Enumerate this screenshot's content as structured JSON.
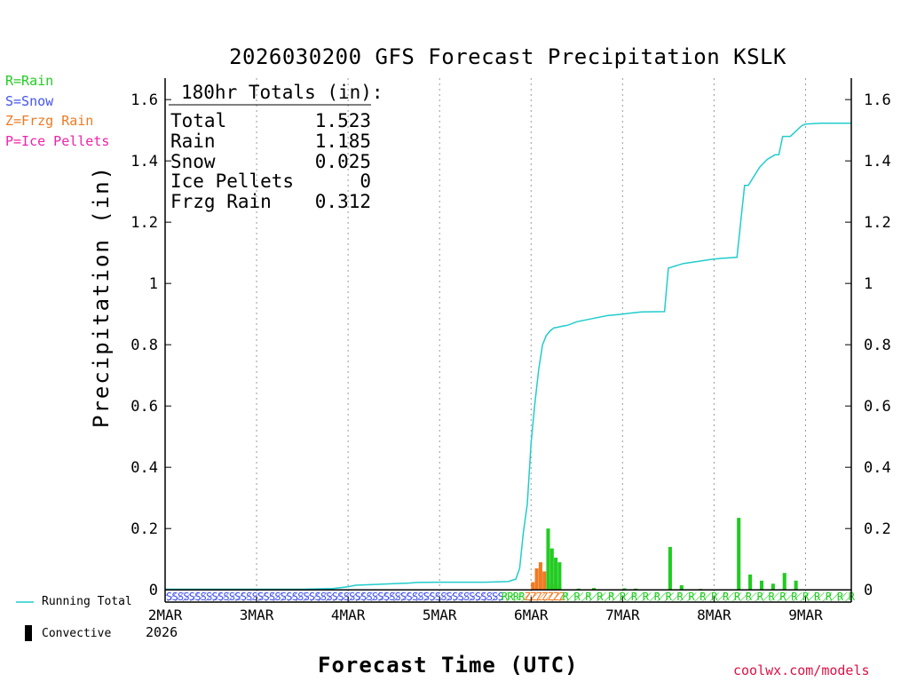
{
  "chart_data": {
    "type": "bar",
    "title": "2026030200 GFS Forecast Precipitation KSLK",
    "xlabel": "Forecast Time (UTC)",
    "ylabel": "Precipitation (in)",
    "ylim": [
      -0.04,
      1.67
    ],
    "yticks": [
      0,
      0.2,
      0.4,
      0.6,
      0.8,
      1,
      1.2,
      1.4,
      1.6
    ],
    "ytick_labels": [
      "0",
      "0.2",
      "0.4",
      "0.6",
      "0.8",
      "1",
      "1.2",
      "1.4",
      "1.6"
    ],
    "xlim_hours": [
      0,
      180
    ],
    "x_ticks": [
      {
        "hour": 0,
        "label": "2MAR"
      },
      {
        "hour": 24,
        "label": "3MAR"
      },
      {
        "hour": 48,
        "label": "4MAR"
      },
      {
        "hour": 72,
        "label": "5MAR"
      },
      {
        "hour": 96,
        "label": "6MAR"
      },
      {
        "hour": 120,
        "label": "7MAR"
      },
      {
        "hour": 144,
        "label": "8MAR"
      },
      {
        "hour": 168,
        "label": "9MAR"
      }
    ],
    "year_label": "2026",
    "grid": "vertical dotted at day boundaries",
    "legend": [
      {
        "text": "R=Rain",
        "color": "#22cc22"
      },
      {
        "text": "S=Snow",
        "color": "#4455ee"
      },
      {
        "text": "Z=Frzg Rain",
        "color": "#ee7a22"
      },
      {
        "text": "P=Ice Pellets",
        "color": "#ee22aa"
      }
    ],
    "bottom_legend": {
      "running_total": "Running Total",
      "convective": "Convective"
    },
    "totals": {
      "header": "180hr Totals (in):",
      "rows": [
        {
          "label": "Total",
          "value": "1.523"
        },
        {
          "label": "Rain",
          "value": "1.185"
        },
        {
          "label": "Snow",
          "value": "0.025"
        },
        {
          "label": "Ice Pellets",
          "value": "0"
        },
        {
          "label": "Frzg Rain",
          "value": "0.312"
        }
      ]
    },
    "series": [
      {
        "name": "Running Total",
        "color": "#22cccc",
        "hours": [
          0,
          36,
          44,
          48,
          50,
          56,
          60,
          64,
          66,
          72,
          78,
          84,
          90,
          92,
          93,
          94,
          95,
          96,
          97,
          98,
          99,
          100,
          101,
          102,
          103,
          104,
          105,
          106,
          108,
          112,
          116,
          120,
          122,
          125,
          131,
          132,
          136,
          140,
          143,
          146,
          150,
          152,
          153,
          156,
          158,
          160,
          161,
          162,
          164,
          167,
          168,
          172,
          180
        ],
        "values": [
          0.002,
          0.002,
          0.004,
          0.01,
          0.015,
          0.018,
          0.02,
          0.022,
          0.024,
          0.025,
          0.025,
          0.025,
          0.027,
          0.035,
          0.07,
          0.19,
          0.28,
          0.48,
          0.61,
          0.72,
          0.8,
          0.83,
          0.845,
          0.855,
          0.857,
          0.86,
          0.862,
          0.865,
          0.875,
          0.885,
          0.895,
          0.9,
          0.903,
          0.907,
          0.908,
          1.05,
          1.065,
          1.072,
          1.078,
          1.082,
          1.085,
          1.32,
          1.32,
          1.38,
          1.405,
          1.42,
          1.42,
          1.48,
          1.48,
          1.515,
          1.52,
          1.523,
          1.523
        ]
      },
      {
        "name": "Frzg Rain",
        "color": "#ee7a22",
        "hours": [
          96,
          97,
          98,
          99,
          100,
          101,
          102,
          103
        ],
        "values": [
          0.025,
          0.07,
          0.09,
          0.06,
          0.03,
          0.02,
          0.02,
          0.005
        ]
      },
      {
        "name": "Rain",
        "color": "#22cc22",
        "hours": [
          100,
          101,
          102,
          103,
          108,
          112,
          120,
          123,
          132,
          135,
          140,
          150,
          153,
          156,
          159,
          162,
          165
        ],
        "values": [
          0.2,
          0.135,
          0.105,
          0.09,
          0.004,
          0.006,
          0.005,
          0.004,
          0.14,
          0.015,
          0.003,
          0.235,
          0.05,
          0.03,
          0.02,
          0.055,
          0.03
        ]
      }
    ],
    "ptype_strip": [
      {
        "type": "S",
        "from_hour": 0,
        "to_hour": 88,
        "color": "#4455ee"
      },
      {
        "type": "R",
        "from_hour": 88,
        "to_hour": 94,
        "color": "#22cc22"
      },
      {
        "type": "Z",
        "from_hour": 94,
        "to_hour": 104,
        "color": "#ee7a22"
      },
      {
        "type": "R",
        "from_hour": 104,
        "to_hour": 180,
        "color": "#22cc22"
      }
    ]
  },
  "credit": "coolwx.com/models"
}
